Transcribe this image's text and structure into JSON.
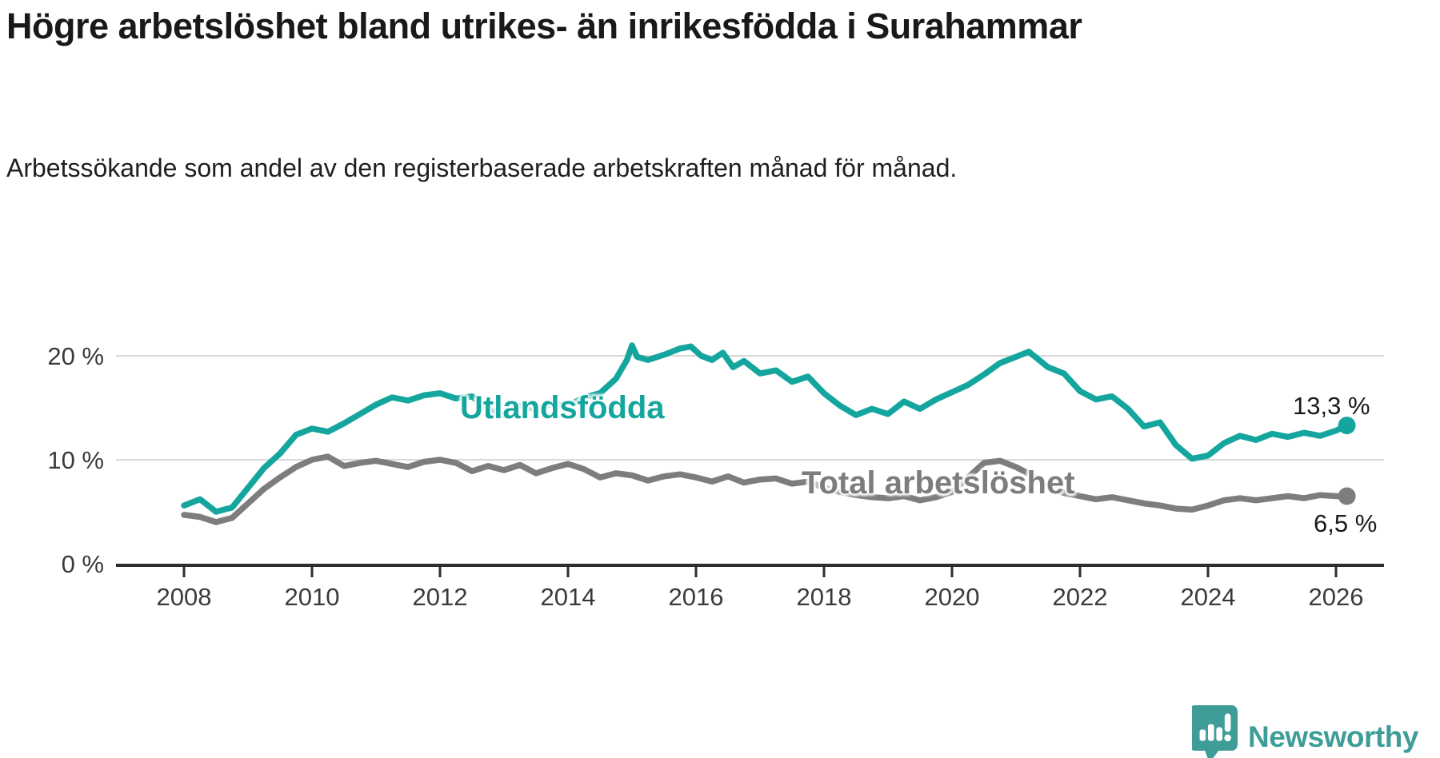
{
  "header": {
    "title": "Högre arbetslöshet bland utrikes- än inrikesfödda i Surahammar",
    "subtitle": "Arbetssökande som andel av den registerbaserade arbetskraften månad för månad."
  },
  "chart_data": {
    "type": "line",
    "title": "Högre arbetslöshet bland utrikes- än inrikesfödda i Surahammar",
    "xlabel": "",
    "ylabel": "Arbetssökande som andel av den registerbaserade arbetskraften",
    "grid": "horizontal",
    "x_axis": {
      "ticks": [
        2008,
        2010,
        2012,
        2014,
        2016,
        2018,
        2020,
        2022,
        2024,
        2026
      ],
      "range": [
        2006.9,
        2026.75
      ]
    },
    "y_axis": {
      "ticks": [
        {
          "value": 0,
          "label": "0 %"
        },
        {
          "value": 10,
          "label": "10 %"
        },
        {
          "value": 20,
          "label": "20 %"
        }
      ],
      "range": [
        0,
        23
      ]
    },
    "style": {
      "grid_color": "#d9d9d9",
      "axis_color": "#2e2e2e",
      "tick_label_color": "#3a3a3a"
    },
    "series": [
      {
        "name": "Utlandsfödda",
        "color": "#14a69e",
        "end_label": "13,3 %",
        "end_value": 13.3,
        "points": [
          [
            2008.0,
            5.6
          ],
          [
            2008.25,
            6.2
          ],
          [
            2008.5,
            5.0
          ],
          [
            2008.75,
            5.4
          ],
          [
            2009.0,
            7.3
          ],
          [
            2009.25,
            9.2
          ],
          [
            2009.5,
            10.6
          ],
          [
            2009.75,
            12.4
          ],
          [
            2010.0,
            13.0
          ],
          [
            2010.25,
            12.7
          ],
          [
            2010.5,
            13.5
          ],
          [
            2010.75,
            14.4
          ],
          [
            2011.0,
            15.3
          ],
          [
            2011.25,
            16.0
          ],
          [
            2011.5,
            15.7
          ],
          [
            2011.75,
            16.2
          ],
          [
            2012.0,
            16.4
          ],
          [
            2012.25,
            15.9
          ],
          [
            2012.5,
            16.1
          ],
          [
            2012.75,
            14.8
          ],
          [
            2013.0,
            14.3
          ],
          [
            2013.25,
            15.2
          ],
          [
            2013.5,
            14.9
          ],
          [
            2013.75,
            15.4
          ],
          [
            2014.0,
            15.2
          ],
          [
            2014.25,
            16.0
          ],
          [
            2014.5,
            16.4
          ],
          [
            2014.75,
            17.8
          ],
          [
            2014.92,
            19.6
          ],
          [
            2015.0,
            21.0
          ],
          [
            2015.08,
            19.9
          ],
          [
            2015.25,
            19.6
          ],
          [
            2015.5,
            20.1
          ],
          [
            2015.75,
            20.7
          ],
          [
            2015.92,
            20.9
          ],
          [
            2016.08,
            20.0
          ],
          [
            2016.25,
            19.6
          ],
          [
            2016.42,
            20.3
          ],
          [
            2016.58,
            18.9
          ],
          [
            2016.75,
            19.5
          ],
          [
            2017.0,
            18.3
          ],
          [
            2017.25,
            18.6
          ],
          [
            2017.5,
            17.5
          ],
          [
            2017.75,
            18.0
          ],
          [
            2018.0,
            16.4
          ],
          [
            2018.25,
            15.2
          ],
          [
            2018.5,
            14.3
          ],
          [
            2018.75,
            14.9
          ],
          [
            2019.0,
            14.4
          ],
          [
            2019.25,
            15.6
          ],
          [
            2019.5,
            14.9
          ],
          [
            2019.75,
            15.8
          ],
          [
            2020.0,
            16.5
          ],
          [
            2020.25,
            17.2
          ],
          [
            2020.5,
            18.2
          ],
          [
            2020.75,
            19.3
          ],
          [
            2021.0,
            19.9
          ],
          [
            2021.2,
            20.4
          ],
          [
            2021.5,
            18.9
          ],
          [
            2021.75,
            18.3
          ],
          [
            2022.0,
            16.6
          ],
          [
            2022.25,
            15.8
          ],
          [
            2022.5,
            16.1
          ],
          [
            2022.75,
            14.9
          ],
          [
            2023.0,
            13.2
          ],
          [
            2023.25,
            13.6
          ],
          [
            2023.5,
            11.4
          ],
          [
            2023.75,
            10.1
          ],
          [
            2024.0,
            10.4
          ],
          [
            2024.25,
            11.6
          ],
          [
            2024.5,
            12.3
          ],
          [
            2024.75,
            11.9
          ],
          [
            2025.0,
            12.5
          ],
          [
            2025.25,
            12.2
          ],
          [
            2025.5,
            12.6
          ],
          [
            2025.75,
            12.3
          ],
          [
            2026.0,
            12.8
          ],
          [
            2026.17,
            13.3
          ]
        ]
      },
      {
        "name": "Total arbetslöshet",
        "color": "#7d7d7d",
        "end_label": "6,5 %",
        "end_value": 6.5,
        "points": [
          [
            2008.0,
            4.7
          ],
          [
            2008.25,
            4.5
          ],
          [
            2008.5,
            4.0
          ],
          [
            2008.75,
            4.4
          ],
          [
            2009.0,
            5.8
          ],
          [
            2009.25,
            7.2
          ],
          [
            2009.5,
            8.3
          ],
          [
            2009.75,
            9.3
          ],
          [
            2010.0,
            10.0
          ],
          [
            2010.25,
            10.3
          ],
          [
            2010.5,
            9.4
          ],
          [
            2010.75,
            9.7
          ],
          [
            2011.0,
            9.9
          ],
          [
            2011.25,
            9.6
          ],
          [
            2011.5,
            9.3
          ],
          [
            2011.75,
            9.8
          ],
          [
            2012.0,
            10.0
          ],
          [
            2012.25,
            9.7
          ],
          [
            2012.5,
            8.9
          ],
          [
            2012.75,
            9.4
          ],
          [
            2013.0,
            9.0
          ],
          [
            2013.25,
            9.5
          ],
          [
            2013.5,
            8.7
          ],
          [
            2013.75,
            9.2
          ],
          [
            2014.0,
            9.6
          ],
          [
            2014.25,
            9.1
          ],
          [
            2014.5,
            8.3
          ],
          [
            2014.75,
            8.7
          ],
          [
            2015.0,
            8.5
          ],
          [
            2015.25,
            8.0
          ],
          [
            2015.5,
            8.4
          ],
          [
            2015.75,
            8.6
          ],
          [
            2016.0,
            8.3
          ],
          [
            2016.25,
            7.9
          ],
          [
            2016.5,
            8.4
          ],
          [
            2016.75,
            7.8
          ],
          [
            2017.0,
            8.1
          ],
          [
            2017.25,
            8.2
          ],
          [
            2017.5,
            7.7
          ],
          [
            2017.75,
            7.9
          ],
          [
            2018.0,
            7.3
          ],
          [
            2018.25,
            6.9
          ],
          [
            2018.5,
            6.6
          ],
          [
            2018.75,
            6.4
          ],
          [
            2019.0,
            6.3
          ],
          [
            2019.25,
            6.5
          ],
          [
            2019.5,
            6.1
          ],
          [
            2019.75,
            6.4
          ],
          [
            2020.0,
            6.9
          ],
          [
            2020.25,
            8.3
          ],
          [
            2020.5,
            9.7
          ],
          [
            2020.75,
            9.9
          ],
          [
            2021.0,
            9.3
          ],
          [
            2021.25,
            8.5
          ],
          [
            2021.5,
            7.4
          ],
          [
            2021.75,
            6.8
          ],
          [
            2022.0,
            6.5
          ],
          [
            2022.25,
            6.2
          ],
          [
            2022.5,
            6.4
          ],
          [
            2022.75,
            6.1
          ],
          [
            2023.0,
            5.8
          ],
          [
            2023.25,
            5.6
          ],
          [
            2023.5,
            5.3
          ],
          [
            2023.75,
            5.2
          ],
          [
            2024.0,
            5.6
          ],
          [
            2024.25,
            6.1
          ],
          [
            2024.5,
            6.3
          ],
          [
            2024.75,
            6.1
          ],
          [
            2025.0,
            6.3
          ],
          [
            2025.25,
            6.5
          ],
          [
            2025.5,
            6.3
          ],
          [
            2025.75,
            6.6
          ],
          [
            2026.0,
            6.5
          ],
          [
            2026.17,
            6.5
          ]
        ]
      }
    ]
  },
  "footer": {
    "brand": "Newsworthy",
    "logo_color": "#3f9d98"
  }
}
